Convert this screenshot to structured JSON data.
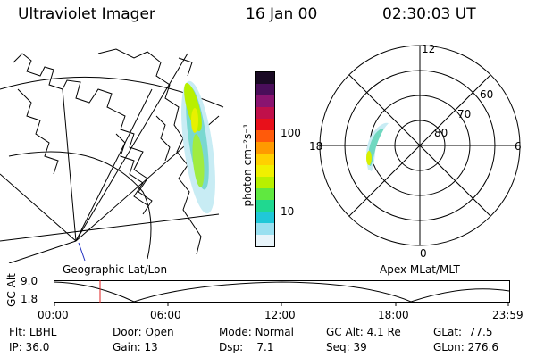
{
  "header": {
    "instrument": "Ultraviolet Imager",
    "date": "16 Jan 00",
    "time": "02:30:03 UT"
  },
  "geo_panel": {
    "caption": "Geographic Lat/Lon"
  },
  "colorbar": {
    "unit_label": "photon cm⁻²s⁻¹",
    "ticks": [
      "100",
      "10"
    ],
    "colors": [
      "#1a0a24",
      "#4a0e5a",
      "#8a1470",
      "#c0104a",
      "#e8101a",
      "#ff5a0a",
      "#ff9a00",
      "#ffd000",
      "#f0f000",
      "#b8f000",
      "#60e840",
      "#20d890",
      "#20c8d8",
      "#9ae0f0",
      "#e8f4fa"
    ]
  },
  "polar_panel": {
    "caption": "Apex MLat/MLT",
    "mlt_labels": {
      "top": "12",
      "right": "6",
      "bottom": "0",
      "left": "18"
    },
    "lat_labels": [
      "60",
      "70",
      "80"
    ]
  },
  "alt_plot": {
    "ylabel": "GC Alt",
    "y_ticks": [
      "9.0",
      "1.8"
    ],
    "x_ticks": [
      "00:00",
      "06:00",
      "12:00",
      "18:00",
      "23:59"
    ]
  },
  "status": {
    "flt": {
      "label": "Flt:",
      "value": "LBHL"
    },
    "ip": {
      "label": "IP:",
      "value": "36.0"
    },
    "door": {
      "label": "Door:",
      "value": "Open"
    },
    "gain": {
      "label": "Gain:",
      "value": "13"
    },
    "mode": {
      "label": "Mode:",
      "value": "Normal"
    },
    "dsp": {
      "label": "Dsp:",
      "value": "7.1"
    },
    "gcalt": {
      "label": "GC Alt:",
      "value": "4.1 Re"
    },
    "seq": {
      "label": "Seq:",
      "value": "39"
    },
    "glat": {
      "label": "GLat:",
      "value": "77.5"
    },
    "glon": {
      "label": "GLon:",
      "value": "276.6"
    }
  }
}
